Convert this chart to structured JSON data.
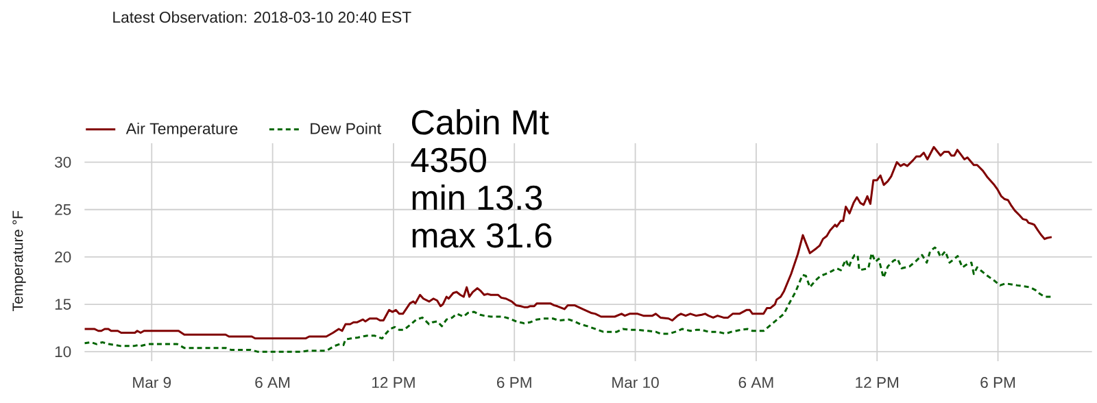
{
  "chart_data": {
    "type": "line",
    "subtitle": "Latest Observation: 2018-03-10 20:40 EST",
    "ylabel": "Temperature °F",
    "annotations": [
      "Cabin Mt",
      "4350",
      "min 13.3",
      "max 31.6"
    ],
    "xlim": [
      "2018-03-08T20:40",
      "2018-03-10T22:40"
    ],
    "xticks": [
      {
        "value": "2018-03-09T00:00",
        "label": "Mar 9"
      },
      {
        "value": "2018-03-09T06:00",
        "label": "6 AM"
      },
      {
        "value": "2018-03-09T12:00",
        "label": "12 PM"
      },
      {
        "value": "2018-03-09T18:00",
        "label": "6 PM"
      },
      {
        "value": "2018-03-10T00:00",
        "label": "Mar 10"
      },
      {
        "value": "2018-03-10T06:00",
        "label": "6 AM"
      },
      {
        "value": "2018-03-10T12:00",
        "label": "12 PM"
      },
      {
        "value": "2018-03-10T18:00",
        "label": "6 PM"
      }
    ],
    "ylim": [
      9,
      32
    ],
    "yticks": [
      10,
      15,
      20,
      25,
      30
    ],
    "grid": true,
    "legend": "top left",
    "series": [
      {
        "name": "Air Temperature",
        "color": "#800000",
        "line_style": "solid",
        "x": [
          "2018-03-08T20:40",
          "2018-03-08T21:09",
          "2018-03-08T21:21",
          "2018-03-08T21:30",
          "2018-03-08T21:40",
          "2018-03-08T21:51",
          "2018-03-08T21:59",
          "2018-03-08T22:19",
          "2018-03-08T22:29",
          "2018-03-08T23:10",
          "2018-03-08T23:17",
          "2018-03-08T23:27",
          "2018-03-08T23:37",
          "2018-03-09T01:20",
          "2018-03-09T01:37",
          "2018-03-09T03:40",
          "2018-03-09T03:50",
          "2018-03-09T04:58",
          "2018-03-09T05:08",
          "2018-03-09T07:38",
          "2018-03-09T07:49",
          "2018-03-09T08:40",
          "2018-03-09T09:00",
          "2018-03-09T09:17",
          "2018-03-09T09:27",
          "2018-03-09T09:37",
          "2018-03-09T09:51",
          "2018-03-09T10:01",
          "2018-03-09T10:11",
          "2018-03-09T10:29",
          "2018-03-09T10:36",
          "2018-03-09T10:49",
          "2018-03-09T11:10",
          "2018-03-09T11:20",
          "2018-03-09T11:30",
          "2018-03-09T11:47",
          "2018-03-09T11:57",
          "2018-03-09T12:07",
          "2018-03-09T12:17",
          "2018-03-09T12:28",
          "2018-03-09T12:49",
          "2018-03-09T12:59",
          "2018-03-09T13:05",
          "2018-03-09T13:19",
          "2018-03-09T13:29",
          "2018-03-09T13:46",
          "2018-03-09T13:59",
          "2018-03-09T14:10",
          "2018-03-09T14:20",
          "2018-03-09T14:27",
          "2018-03-09T14:38",
          "2018-03-09T14:44",
          "2018-03-09T14:58",
          "2018-03-09T15:08",
          "2018-03-09T15:19",
          "2018-03-09T15:29",
          "2018-03-09T15:38",
          "2018-03-09T15:46",
          "2018-03-09T15:56",
          "2018-03-09T16:10",
          "2018-03-09T16:20",
          "2018-03-09T16:30",
          "2018-03-09T16:40",
          "2018-03-09T16:50",
          "2018-03-09T17:11",
          "2018-03-09T17:21",
          "2018-03-09T17:35",
          "2018-03-09T17:52",
          "2018-03-09T18:05",
          "2018-03-09T18:19",
          "2018-03-09T18:29",
          "2018-03-09T18:40",
          "2018-03-09T18:46",
          "2018-03-09T18:59",
          "2018-03-09T19:07",
          "2018-03-09T19:47",
          "2018-03-09T19:58",
          "2018-03-09T20:08",
          "2018-03-09T20:29",
          "2018-03-09T20:39",
          "2018-03-09T20:59",
          "2018-03-09T21:23",
          "2018-03-09T21:48",
          "2018-03-09T22:01",
          "2018-03-09T22:18",
          "2018-03-09T22:59",
          "2018-03-09T23:19",
          "2018-03-09T23:29",
          "2018-03-09T23:43",
          "2018-03-10T00:07",
          "2018-03-10T00:24",
          "2018-03-10T00:51",
          "2018-03-10T01:01",
          "2018-03-10T01:15",
          "2018-03-10T01:39",
          "2018-03-10T01:50",
          "2018-03-10T02:06",
          "2018-03-10T02:16",
          "2018-03-10T02:30",
          "2018-03-10T02:44",
          "2018-03-10T03:01",
          "2018-03-10T03:18",
          "2018-03-10T03:28",
          "2018-03-10T03:38",
          "2018-03-10T03:52",
          "2018-03-10T04:05",
          "2018-03-10T04:23",
          "2018-03-10T04:36",
          "2018-03-10T04:50",
          "2018-03-10T05:10",
          "2018-03-10T05:31",
          "2018-03-10T05:41",
          "2018-03-10T05:49",
          "2018-03-10T06:22",
          "2018-03-10T06:32",
          "2018-03-10T06:42",
          "2018-03-10T06:56",
          "2018-03-10T07:01",
          "2018-03-10T07:13",
          "2018-03-10T07:23",
          "2018-03-10T07:44",
          "2018-03-10T08:04",
          "2018-03-10T08:19",
          "2018-03-10T08:40",
          "2018-03-10T08:59",
          "2018-03-10T09:09",
          "2018-03-10T09:19",
          "2018-03-10T09:30",
          "2018-03-10T09:40",
          "2018-03-10T09:55",
          "2018-03-10T10:00",
          "2018-03-10T10:12",
          "2018-03-10T10:19",
          "2018-03-10T10:27",
          "2018-03-10T10:38",
          "2018-03-10T10:50",
          "2018-03-10T11:00",
          "2018-03-10T11:10",
          "2018-03-10T11:20",
          "2018-03-10T11:31",
          "2018-03-10T11:40",
          "2018-03-10T11:49",
          "2018-03-10T12:00",
          "2018-03-10T12:10",
          "2018-03-10T12:20",
          "2018-03-10T12:32",
          "2018-03-10T12:42",
          "2018-03-10T12:59",
          "2018-03-10T13:10",
          "2018-03-10T13:20",
          "2018-03-10T13:30",
          "2018-03-10T13:47",
          "2018-03-10T13:57",
          "2018-03-10T14:08",
          "2018-03-10T14:19",
          "2018-03-10T14:30",
          "2018-03-10T14:49",
          "2018-03-10T15:09",
          "2018-03-10T15:20",
          "2018-03-10T15:33",
          "2018-03-10T15:41",
          "2018-03-10T15:50",
          "2018-03-10T15:59",
          "2018-03-10T16:14",
          "2018-03-10T16:20",
          "2018-03-10T16:29",
          "2018-03-10T16:48",
          "2018-03-10T16:58",
          "2018-03-10T17:15",
          "2018-03-10T17:29",
          "2018-03-10T17:49",
          "2018-03-10T17:59",
          "2018-03-10T18:10",
          "2018-03-10T18:20",
          "2018-03-10T18:30",
          "2018-03-10T18:40",
          "2018-03-10T18:50",
          "2018-03-10T19:04",
          "2018-03-10T19:14",
          "2018-03-10T19:25",
          "2018-03-10T19:31",
          "2018-03-10T19:41",
          "2018-03-10T19:48",
          "2018-03-10T19:59",
          "2018-03-10T20:09",
          "2018-03-10T20:19",
          "2018-03-10T20:26",
          "2018-03-10T20:40"
        ],
        "values": [
          12.4,
          12.4,
          12.2,
          12.2,
          12.4,
          12.4,
          12.2,
          12.2,
          12.0,
          12.0,
          12.2,
          12.0,
          12.2,
          12.2,
          11.8,
          11.8,
          11.6,
          11.6,
          11.4,
          11.4,
          11.6,
          11.6,
          12.0,
          12.4,
          12.2,
          12.9,
          12.9,
          13.1,
          13.1,
          13.4,
          13.2,
          13.5,
          13.5,
          13.3,
          13.3,
          14.4,
          14.2,
          14.4,
          14.0,
          14.0,
          15.1,
          15.3,
          15.1,
          16.0,
          15.6,
          15.3,
          15.6,
          15.4,
          14.8,
          15.0,
          15.8,
          15.6,
          16.2,
          16.3,
          16.0,
          15.8,
          16.8,
          15.8,
          16.3,
          16.7,
          16.4,
          16.0,
          16.1,
          16.0,
          16.0,
          15.7,
          15.6,
          15.3,
          14.9,
          14.8,
          14.7,
          14.7,
          14.8,
          14.8,
          15.1,
          15.1,
          14.9,
          14.8,
          14.5,
          14.9,
          14.9,
          14.5,
          14.1,
          14.0,
          13.7,
          13.7,
          14.0,
          13.8,
          14.0,
          14.0,
          13.8,
          13.8,
          14.0,
          13.6,
          13.5,
          13.3,
          13.8,
          14.0,
          13.8,
          14.0,
          13.8,
          13.9,
          14.0,
          13.8,
          13.6,
          13.8,
          13.6,
          13.6,
          14.0,
          14.0,
          14.4,
          14.4,
          14.0,
          14.0,
          14.6,
          14.6,
          15.0,
          15.5,
          15.8,
          16.4,
          18.2,
          20.3,
          22.3,
          20.4,
          20.9,
          21.2,
          21.9,
          22.2,
          22.8,
          23.4,
          23.2,
          23.8,
          23.8,
          25.3,
          24.6,
          25.7,
          26.3,
          25.7,
          25.5,
          26.4,
          25.6,
          28.1,
          28.1,
          28.6,
          27.6,
          28.0,
          28.5,
          30.0,
          29.6,
          29.8,
          29.6,
          30.2,
          30.6,
          30.6,
          31.0,
          30.3,
          31.6,
          30.7,
          31.1,
          31.1,
          30.7,
          30.7,
          31.3,
          30.6,
          30.3,
          30.5,
          29.7,
          29.7,
          29.1,
          28.4,
          27.6,
          27.1,
          26.4,
          26.1,
          26.0,
          25.4,
          24.9,
          24.4,
          24.0,
          23.9,
          23.6,
          23.5,
          23.4,
          22.8,
          22.3,
          21.9,
          22.0,
          22.1
        ]
      },
      {
        "name": "Dew Point",
        "color": "#006400",
        "line_style": "dashed",
        "x": [
          "2018-03-08T20:40",
          "2018-03-08T20:59",
          "2018-03-08T21:16",
          "2018-03-08T21:33",
          "2018-03-08T21:53",
          "2018-03-08T22:28",
          "2018-03-08T23:06",
          "2018-03-08T23:20",
          "2018-03-08T23:27",
          "2018-03-08T23:48",
          "2018-03-09T01:16",
          "2018-03-09T01:37",
          "2018-03-09T03:40",
          "2018-03-09T03:56",
          "2018-03-09T04:54",
          "2018-03-09T05:15",
          "2018-03-09T07:25",
          "2018-03-09T07:45",
          "2018-03-09T08:40",
          "2018-03-09T09:04",
          "2018-03-09T09:20",
          "2018-03-09T09:31",
          "2018-03-09T09:37",
          "2018-03-09T09:54",
          "2018-03-09T10:14",
          "2018-03-09T10:42",
          "2018-03-09T11:03",
          "2018-03-09T11:26",
          "2018-03-09T11:37",
          "2018-03-09T11:50",
          "2018-03-09T12:04",
          "2018-03-09T12:17",
          "2018-03-09T12:31",
          "2018-03-09T12:52",
          "2018-03-09T13:08",
          "2018-03-09T13:26",
          "2018-03-09T13:46",
          "2018-03-09T13:56",
          "2018-03-09T14:10",
          "2018-03-09T14:24",
          "2018-03-09T14:38",
          "2018-03-09T14:55",
          "2018-03-09T15:08",
          "2018-03-09T15:16",
          "2018-03-09T15:28",
          "2018-03-09T15:42",
          "2018-03-09T16:00",
          "2018-03-09T16:18",
          "2018-03-09T16:30",
          "2018-03-09T16:50",
          "2018-03-09T17:04",
          "2018-03-09T17:25",
          "2018-03-09T17:45",
          "2018-03-09T18:05",
          "2018-03-09T18:29",
          "2018-03-09T18:46",
          "2018-03-09T19:07",
          "2018-03-09T19:27",
          "2018-03-09T19:55",
          "2018-03-09T20:12",
          "2018-03-09T20:42",
          "2018-03-09T20:59",
          "2018-03-09T21:16",
          "2018-03-09T21:37",
          "2018-03-09T22:01",
          "2018-03-09T22:25",
          "2018-03-09T23:05",
          "2018-03-09T23:23",
          "2018-03-09T23:46",
          "2018-03-10T00:07",
          "2018-03-10T00:38",
          "2018-03-10T01:01",
          "2018-03-10T01:15",
          "2018-03-10T01:42",
          "2018-03-10T01:59",
          "2018-03-10T02:20",
          "2018-03-10T02:44",
          "2018-03-10T03:01",
          "2018-03-10T03:18",
          "2018-03-10T03:38",
          "2018-03-10T04:05",
          "2018-03-10T04:29",
          "2018-03-10T04:46",
          "2018-03-10T05:14",
          "2018-03-10T05:34",
          "2018-03-10T05:49",
          "2018-03-10T06:22",
          "2018-03-10T06:39",
          "2018-03-10T06:56",
          "2018-03-10T07:23",
          "2018-03-10T07:37",
          "2018-03-10T07:57",
          "2018-03-10T08:18",
          "2018-03-10T08:28",
          "2018-03-10T08:40",
          "2018-03-10T08:56",
          "2018-03-10T09:12",
          "2018-03-10T09:26",
          "2018-03-10T09:45",
          "2018-03-10T10:00",
          "2018-03-10T10:12",
          "2018-03-10T10:27",
          "2018-03-10T10:36",
          "2018-03-10T10:43",
          "2018-03-10T10:53",
          "2018-03-10T11:02",
          "2018-03-10T11:07",
          "2018-03-10T11:34",
          "2018-03-10T11:44",
          "2018-03-10T11:55",
          "2018-03-10T12:05",
          "2018-03-10T12:19",
          "2018-03-10T12:32",
          "2018-03-10T12:49",
          "2018-03-10T13:01",
          "2018-03-10T13:13",
          "2018-03-10T13:37",
          "2018-03-10T13:57",
          "2018-03-10T14:14",
          "2018-03-10T14:28",
          "2018-03-10T14:38",
          "2018-03-10T14:52",
          "2018-03-10T14:59",
          "2018-03-10T15:09",
          "2018-03-10T15:23",
          "2018-03-10T15:36",
          "2018-03-10T15:50",
          "2018-03-10T16:00",
          "2018-03-10T16:14",
          "2018-03-10T16:31",
          "2018-03-10T16:41",
          "2018-03-10T16:48",
          "2018-03-10T16:58",
          "2018-03-10T17:08",
          "2018-03-10T17:22",
          "2018-03-10T17:29",
          "2018-03-10T17:49",
          "2018-03-10T18:06",
          "2018-03-10T18:23",
          "2018-03-10T18:40",
          "2018-03-10T18:57",
          "2018-03-10T19:18",
          "2018-03-10T19:35",
          "2018-03-10T19:52",
          "2018-03-10T20:05",
          "2018-03-10T20:19",
          "2018-03-10T20:40"
        ],
        "values": [
          10.9,
          11.0,
          10.8,
          11.0,
          10.8,
          10.6,
          10.6,
          10.7,
          10.6,
          10.8,
          10.8,
          10.4,
          10.4,
          10.2,
          10.2,
          10.0,
          10.0,
          10.1,
          10.1,
          10.6,
          10.8,
          10.7,
          11.3,
          11.4,
          11.5,
          11.7,
          11.7,
          11.4,
          11.9,
          12.4,
          12.6,
          12.3,
          12.3,
          12.9,
          13.4,
          13.6,
          12.9,
          13.1,
          13.2,
          12.7,
          13.4,
          13.6,
          14.0,
          13.9,
          13.7,
          14.1,
          14.2,
          13.9,
          13.8,
          13.7,
          13.7,
          13.7,
          13.5,
          13.2,
          13.0,
          13.1,
          13.4,
          13.5,
          13.5,
          13.3,
          13.4,
          13.2,
          12.9,
          12.7,
          12.4,
          12.1,
          12.1,
          12.4,
          12.3,
          12.3,
          12.2,
          12.1,
          11.9,
          11.9,
          12.1,
          12.4,
          12.2,
          12.3,
          12.3,
          12.1,
          12.1,
          11.9,
          12.1,
          12.3,
          12.4,
          12.2,
          12.2,
          12.7,
          13.2,
          14.0,
          15.0,
          16.3,
          18.1,
          18.0,
          16.8,
          17.5,
          18.0,
          18.2,
          18.5,
          18.8,
          18.6,
          19.7,
          18.9,
          19.6,
          20.2,
          20.2,
          18.6,
          18.8,
          20.4,
          19.5,
          19.8,
          17.8,
          19.0,
          19.6,
          19.8,
          18.8,
          19.0,
          19.6,
          20.2,
          19.4,
          20.6,
          21.0,
          20.8,
          20.0,
          20.6,
          19.4,
          19.8,
          20.1,
          18.9,
          19.3,
          19.4,
          18.2,
          18.9,
          18.6,
          18.2,
          18.0,
          17.5,
          17.0,
          17.2,
          17.1,
          17.0,
          16.9,
          16.8,
          16.5,
          16.1,
          15.8,
          15.8
        ]
      }
    ]
  }
}
